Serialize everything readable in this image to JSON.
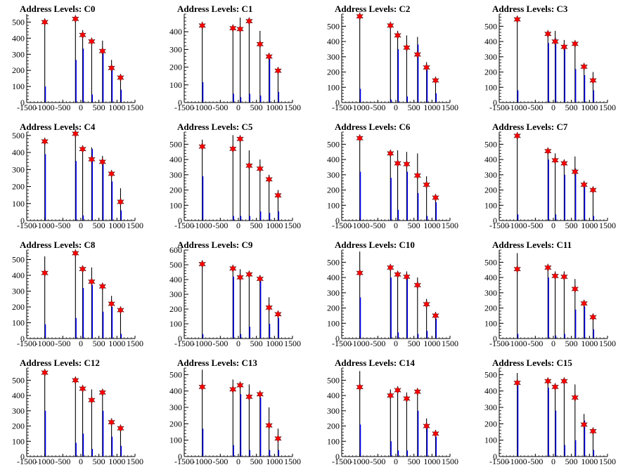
{
  "x_axis": {
    "ticks": [
      -1500,
      -1000,
      -500,
      0,
      500,
      1000,
      1500
    ],
    "labels": [
      "-1500",
      "-1000",
      "-500",
      "0",
      "500",
      "1000",
      "1500"
    ],
    "range": [
      -1500,
      1500
    ]
  },
  "colors": {
    "hist1": "#000000",
    "hist2": "#0000ff",
    "marker": "#ff0000",
    "axis": "#000000"
  },
  "chart_data": [
    {
      "type": "bar",
      "title": "Address Levels: C0",
      "ylim": [
        0,
        550
      ],
      "yticks": [
        0,
        100,
        200,
        300,
        400,
        500
      ],
      "peaks_x": [
        -1000,
        -150,
        50,
        300,
        600,
        850,
        1100
      ],
      "series": [
        {
          "values": [
            500,
            520,
            450,
            400,
            385,
            265,
            170
          ]
        },
        {
          "values": [
            100,
            265,
            335,
            50,
            310,
            210,
            80
          ]
        }
      ],
      "markers": [
        500,
        520,
        420,
        380,
        320,
        215,
        155
      ]
    },
    {
      "type": "bar",
      "title": "Address Levels: C1",
      "ylim": [
        0,
        500
      ],
      "yticks": [
        0,
        100,
        200,
        300,
        400
      ],
      "peaks_x": [
        -1000,
        -150,
        50,
        300,
        600,
        850,
        1100
      ],
      "series": [
        {
          "values": [
            440,
            430,
            480,
            470,
            405,
            270,
            180
          ]
        },
        {
          "values": [
            115,
            50,
            30,
            50,
            40,
            260,
            60
          ]
        }
      ],
      "markers": [
        435,
        420,
        415,
        460,
        330,
        260,
        180
      ]
    },
    {
      "type": "bar",
      "title": "Address Levels: C2",
      "ylim": [
        0,
        580
      ],
      "yticks": [
        0,
        100,
        200,
        300,
        400,
        500
      ],
      "peaks_x": [
        -1000,
        -150,
        50,
        300,
        600,
        850,
        1100
      ],
      "series": [
        {
          "values": [
            570,
            520,
            470,
            440,
            430,
            265,
            150
          ]
        },
        {
          "values": [
            90,
            20,
            350,
            40,
            380,
            215,
            60
          ]
        }
      ],
      "markers": [
        565,
        505,
        440,
        360,
        315,
        230,
        145
      ]
    },
    {
      "type": "bar",
      "title": "Address Levels: C3",
      "ylim": [
        0,
        580
      ],
      "yticks": [
        0,
        100,
        200,
        300,
        400,
        500
      ],
      "peaks_x": [
        -1000,
        -150,
        50,
        300,
        600,
        850,
        1100
      ],
      "series": [
        {
          "values": [
            550,
            470,
            470,
            410,
            390,
            250,
            200
          ]
        },
        {
          "values": [
            80,
            390,
            420,
            370,
            220,
            180,
            80
          ]
        }
      ],
      "markers": [
        545,
        450,
        400,
        365,
        385,
        235,
        145
      ]
    },
    {
      "type": "bar",
      "title": "Address Levels: C4",
      "ylim": [
        0,
        520
      ],
      "yticks": [
        0,
        100,
        200,
        300,
        400,
        500
      ],
      "peaks_x": [
        -1000,
        -150,
        50,
        300,
        600,
        850,
        1100
      ],
      "series": [
        {
          "values": [
            470,
            520,
            440,
            430,
            380,
            290,
            190
          ]
        },
        {
          "values": [
            390,
            350,
            30,
            420,
            340,
            230,
            60
          ]
        }
      ],
      "markers": [
        465,
        510,
        420,
        360,
        345,
        275,
        110
      ]
    },
    {
      "type": "bar",
      "title": "Address Levels: C5",
      "ylim": [
        0,
        580
      ],
      "yticks": [
        0,
        100,
        200,
        300,
        400,
        500
      ],
      "peaks_x": [
        -1000,
        -150,
        50,
        300,
        600,
        850,
        1100
      ],
      "series": [
        {
          "values": [
            530,
            560,
            555,
            460,
            400,
            300,
            200
          ]
        },
        {
          "values": [
            290,
            30,
            30,
            30,
            60,
            50,
            60
          ]
        }
      ],
      "markers": [
        485,
        470,
        535,
        360,
        340,
        270,
        165
      ]
    },
    {
      "type": "bar",
      "title": "Address Levels: C6",
      "ylim": [
        0,
        580
      ],
      "yticks": [
        0,
        100,
        200,
        300,
        400,
        500
      ],
      "peaks_x": [
        -1000,
        -150,
        50,
        300,
        600,
        850,
        1100
      ],
      "series": [
        {
          "values": [
            530,
            430,
            460,
            450,
            440,
            290,
            170
          ]
        },
        {
          "values": [
            320,
            280,
            70,
            320,
            180,
            30,
            120
          ]
        }
      ],
      "markers": [
        540,
        440,
        375,
        370,
        295,
        235,
        150
      ]
    },
    {
      "type": "bar",
      "title": "Address Levels: C7",
      "ylim": [
        0,
        580
      ],
      "yticks": [
        0,
        100,
        200,
        300,
        400,
        500
      ],
      "peaks_x": [
        -1000,
        -150,
        50,
        300,
        600,
        850,
        1100
      ],
      "series": [
        {
          "values": [
            570,
            470,
            440,
            400,
            420,
            260,
            220
          ]
        },
        {
          "values": [
            40,
            400,
            40,
            300,
            340,
            230,
            30
          ]
        }
      ],
      "markers": [
        555,
        455,
        395,
        375,
        320,
        235,
        200
      ]
    },
    {
      "type": "bar",
      "title": "Address Levels: C8",
      "ylim": [
        0,
        560
      ],
      "yticks": [
        0,
        100,
        200,
        300,
        400,
        500
      ],
      "peaks_x": [
        -1000,
        -150,
        50,
        300,
        600,
        850,
        1100
      ],
      "series": [
        {
          "values": [
            520,
            555,
            440,
            450,
            350,
            270,
            200
          ]
        },
        {
          "values": [
            90,
            130,
            320,
            340,
            170,
            200,
            30
          ]
        }
      ],
      "markers": [
        415,
        540,
        440,
        360,
        330,
        220,
        180
      ]
    },
    {
      "type": "bar",
      "title": "Address Levels: C9",
      "ylim": [
        0,
        600
      ],
      "yticks": [
        0,
        100,
        200,
        300,
        400,
        500,
        600
      ],
      "peaks_x": [
        -1000,
        -150,
        50,
        300,
        600,
        850,
        1100
      ],
      "series": [
        {
          "values": [
            530,
            480,
            470,
            450,
            430,
            280,
            180
          ]
        },
        {
          "values": [
            30,
            420,
            30,
            80,
            390,
            100,
            140
          ]
        }
      ],
      "markers": [
        505,
        475,
        415,
        435,
        405,
        210,
        165
      ]
    },
    {
      "type": "bar",
      "title": "Address Levels: C10",
      "ylim": [
        0,
        580
      ],
      "yticks": [
        0,
        100,
        200,
        300,
        400,
        500
      ],
      "peaks_x": [
        -1000,
        -150,
        50,
        300,
        600,
        850,
        1100
      ],
      "series": [
        {
          "values": [
            570,
            480,
            440,
            440,
            400,
            260,
            170
          ]
        },
        {
          "values": [
            270,
            400,
            40,
            400,
            30,
            50,
            130
          ]
        }
      ],
      "markers": [
        430,
        465,
        420,
        405,
        350,
        225,
        150
      ]
    },
    {
      "type": "bar",
      "title": "Address Levels: C11",
      "ylim": [
        0,
        580
      ],
      "yticks": [
        0,
        100,
        200,
        300,
        400,
        500
      ],
      "peaks_x": [
        -1000,
        -150,
        50,
        300,
        600,
        850,
        1100
      ],
      "series": [
        {
          "values": [
            560,
            480,
            440,
            440,
            390,
            250,
            160
          ]
        },
        {
          "values": [
            30,
            400,
            20,
            30,
            190,
            210,
            60
          ]
        }
      ],
      "markers": [
        455,
        465,
        410,
        405,
        325,
        230,
        140
      ]
    },
    {
      "type": "bar",
      "title": "Address Levels: C12",
      "ylim": [
        0,
        580
      ],
      "yticks": [
        0,
        100,
        200,
        300,
        400,
        500
      ],
      "peaks_x": [
        -1000,
        -150,
        50,
        300,
        600,
        850,
        1100
      ],
      "series": [
        {
          "values": [
            570,
            520,
            450,
            440,
            430,
            250,
            200
          ]
        },
        {
          "values": [
            300,
            90,
            150,
            50,
            300,
            130,
            70
          ]
        }
      ],
      "markers": [
        550,
        500,
        445,
        370,
        420,
        225,
        185
      ]
    },
    {
      "type": "bar",
      "title": "Address Levels: C13",
      "ylim": [
        0,
        540
      ],
      "yticks": [
        0,
        100,
        200,
        300,
        400,
        500
      ],
      "peaks_x": [
        -1000,
        -150,
        50,
        300,
        600,
        850,
        1100
      ],
      "series": [
        {
          "values": [
            530,
            470,
            450,
            440,
            390,
            300,
            170
          ]
        },
        {
          "values": [
            170,
            70,
            380,
            40,
            360,
            40,
            40
          ]
        }
      ],
      "markers": [
        425,
        410,
        435,
        365,
        380,
        190,
        110
      ]
    },
    {
      "type": "bar",
      "title": "Address Levels: C14",
      "ylim": [
        0,
        580
      ],
      "yticks": [
        0,
        100,
        200,
        300,
        400,
        500
      ],
      "peaks_x": [
        -1000,
        -150,
        50,
        300,
        600,
        850,
        1100
      ],
      "series": [
        {
          "values": [
            560,
            440,
            460,
            420,
            440,
            250,
            150
          ]
        },
        {
          "values": [
            210,
            100,
            40,
            40,
            300,
            190,
            130
          ]
        }
      ],
      "markers": [
        455,
        400,
        435,
        380,
        425,
        200,
        150
      ]
    },
    {
      "type": "bar",
      "title": "Address Levels: C15",
      "ylim": [
        0,
        540
      ],
      "yticks": [
        0,
        100,
        200,
        300,
        400,
        500
      ],
      "peaks_x": [
        -1000,
        -150,
        50,
        300,
        600,
        850,
        1100
      ],
      "series": [
        {
          "values": [
            510,
            470,
            440,
            470,
            440,
            260,
            170
          ]
        },
        {
          "values": [
            440,
            420,
            280,
            70,
            100,
            220,
            40
          ]
        }
      ],
      "markers": [
        450,
        460,
        425,
        460,
        360,
        195,
        155
      ]
    }
  ]
}
